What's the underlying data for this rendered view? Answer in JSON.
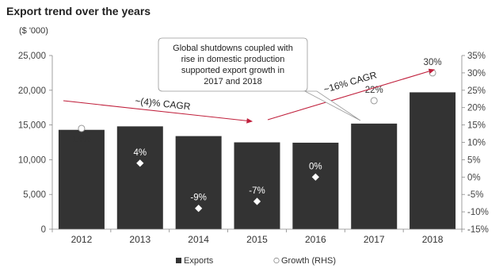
{
  "chart_data": {
    "type": "bar",
    "title": "Export trend over the years",
    "left_axis_unit": "($ '000)",
    "categories": [
      "2012",
      "2013",
      "2014",
      "2015",
      "2016",
      "2017",
      "2018"
    ],
    "series": [
      {
        "name": "Exports",
        "kind": "bar",
        "axis": "left",
        "color": "#333333",
        "values": [
          14300,
          14800,
          13400,
          12500,
          12450,
          15200,
          19700
        ]
      },
      {
        "name": "Growth (RHS)",
        "kind": "marker",
        "axis": "right",
        "values": [
          14,
          4,
          -9,
          -7,
          0,
          22,
          30
        ],
        "labels": [
          "14%",
          "4%",
          "-9%",
          "-7%",
          "0%",
          "22%",
          "30%"
        ]
      }
    ],
    "ylim_left": [
      0,
      25000
    ],
    "yticks_left": [
      0,
      5000,
      10000,
      15000,
      20000,
      25000
    ],
    "ytick_labels_left": [
      "0",
      "5,000",
      "10,000",
      "15,000",
      "20,000",
      "25,000"
    ],
    "ylim_right": [
      -15,
      35
    ],
    "yticks_right": [
      -15,
      -10,
      -5,
      0,
      5,
      10,
      15,
      20,
      25,
      30,
      35
    ],
    "ytick_labels_right": [
      "-15%",
      "-10%",
      "-5%",
      "0%",
      "5%",
      "10%",
      "15%",
      "20%",
      "25%",
      "30%",
      "35%"
    ],
    "legend_position": "bottom",
    "grid": false,
    "annotations": {
      "cagr_1": "~(4)% CAGR",
      "cagr_2": "~16% CAGR",
      "callout": [
        "Global shutdowns coupled with",
        "rise in domestic production",
        "supported export growth in",
        "2017 and 2018"
      ],
      "arrow_color": "#c0203c"
    }
  }
}
